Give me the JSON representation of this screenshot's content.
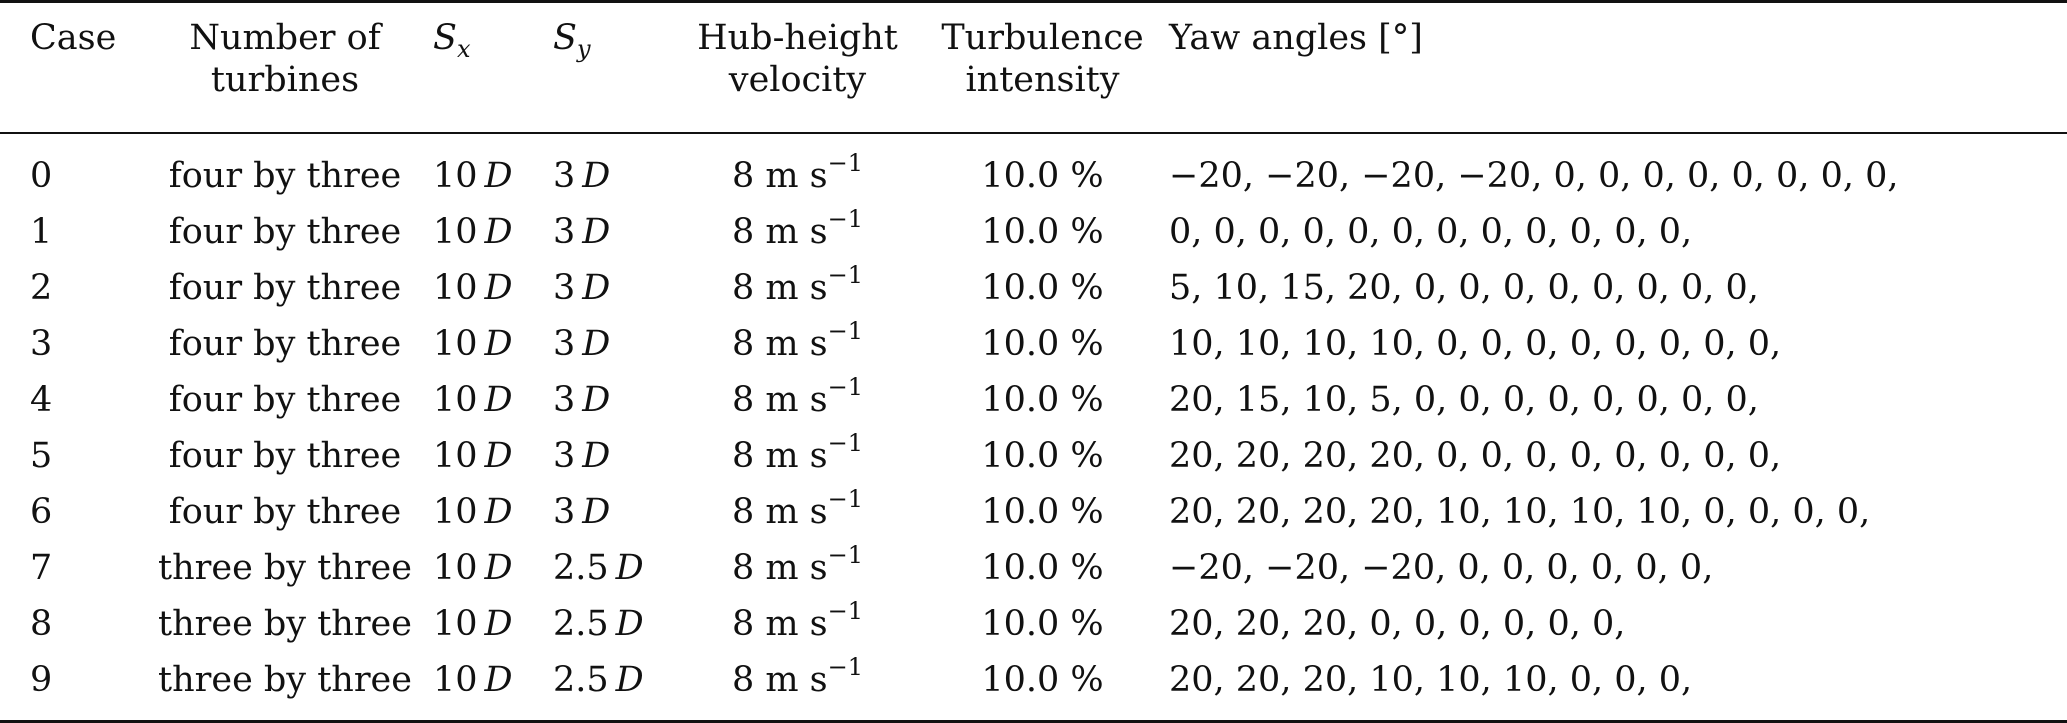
{
  "headers": {
    "case": "Case",
    "num_line1": "Number of",
    "num_line2": "turbines",
    "sx_main": "S",
    "sx_sub": "x",
    "sy_main": "S",
    "sy_sub": "y",
    "vel_line1": "Hub-height",
    "vel_line2": "velocity",
    "ti_line1": "Turbulence",
    "ti_line2": "intensity",
    "yaw": "Yaw angles [°]"
  },
  "units": {
    "d": "D",
    "vel_base": "8 m s",
    "vel_exp": "−1"
  },
  "rows": [
    {
      "case": "0",
      "turbines": "four by three",
      "sx": "10",
      "sy": "3",
      "ti": "10.0 %",
      "yaw": "−20, −20, −20, −20, 0, 0, 0, 0, 0, 0, 0, 0,"
    },
    {
      "case": "1",
      "turbines": "four by three",
      "sx": "10",
      "sy": "3",
      "ti": "10.0 %",
      "yaw": "0, 0, 0, 0, 0, 0, 0, 0, 0, 0, 0, 0,"
    },
    {
      "case": "2",
      "turbines": "four by three",
      "sx": "10",
      "sy": "3",
      "ti": "10.0 %",
      "yaw": "5, 10, 15, 20, 0, 0, 0, 0, 0, 0, 0, 0,"
    },
    {
      "case": "3",
      "turbines": "four by three",
      "sx": "10",
      "sy": "3",
      "ti": "10.0 %",
      "yaw": "10, 10, 10, 10, 0, 0, 0, 0, 0, 0, 0, 0,"
    },
    {
      "case": "4",
      "turbines": "four by three",
      "sx": "10",
      "sy": "3",
      "ti": "10.0 %",
      "yaw": "20, 15, 10, 5, 0, 0, 0, 0, 0, 0, 0, 0,"
    },
    {
      "case": "5",
      "turbines": "four by three",
      "sx": "10",
      "sy": "3",
      "ti": "10.0 %",
      "yaw": "20, 20, 20, 20, 0, 0, 0, 0, 0, 0, 0, 0,"
    },
    {
      "case": "6",
      "turbines": "four by three",
      "sx": "10",
      "sy": "3",
      "ti": "10.0 %",
      "yaw": "20, 20, 20, 20, 10, 10, 10, 10, 0, 0, 0, 0,"
    },
    {
      "case": "7",
      "turbines": "three by three",
      "sx": "10",
      "sy": "2.5",
      "ti": "10.0 %",
      "yaw": "−20, −20, −20, 0, 0, 0, 0, 0, 0,"
    },
    {
      "case": "8",
      "turbines": "three by three",
      "sx": "10",
      "sy": "2.5",
      "ti": "10.0 %",
      "yaw": "20, 20, 20, 0, 0, 0, 0, 0, 0,"
    },
    {
      "case": "9",
      "turbines": "three by three",
      "sx": "10",
      "sy": "2.5",
      "ti": "10.0 %",
      "yaw": "20, 20, 20, 10, 10, 10, 0, 0, 0,"
    }
  ]
}
